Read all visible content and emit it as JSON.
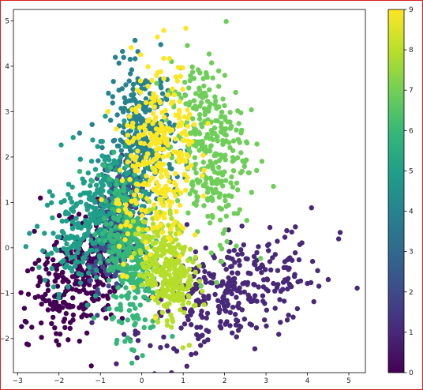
{
  "chart_data": {
    "type": "scatter",
    "title": "",
    "xlabel": "",
    "ylabel": "",
    "xlim": [
      -3.1,
      5.4
    ],
    "ylim": [
      -2.75,
      5.25
    ],
    "x_ticks": [
      -3,
      -2,
      -1,
      0,
      1,
      2,
      3,
      4,
      5
    ],
    "y_ticks": [
      -2,
      -1,
      0,
      1,
      2,
      3,
      4,
      5
    ],
    "grid": false,
    "colormap": "viridis",
    "colorbar": {
      "min": 0,
      "max": 9,
      "ticks": [
        0,
        1,
        2,
        3,
        4,
        5,
        6,
        7,
        8,
        9
      ]
    },
    "clusters": [
      {
        "label": 0,
        "center": [
          -1.5,
          -0.6
        ],
        "spread": [
          0.5,
          0.75
        ],
        "rotation": -0.6,
        "color": "#440154"
      },
      {
        "label": 1,
        "center": [
          2.2,
          -1.0
        ],
        "spread": [
          1.2,
          0.55
        ],
        "rotation": 0.35,
        "color": "#482878"
      },
      {
        "label": 2,
        "center": [
          -0.6,
          0.6
        ],
        "spread": [
          0.25,
          0.75
        ],
        "rotation": -0.2,
        "color": "#3e4a89"
      },
      {
        "label": 4,
        "center": [
          0.0,
          2.4
        ],
        "spread": [
          0.4,
          0.8
        ],
        "rotation": 0.0,
        "color": "#26828e"
      },
      {
        "label": 5,
        "center": [
          -1.2,
          0.7
        ],
        "spread": [
          0.45,
          0.85
        ],
        "rotation": -0.45,
        "color": "#1f9e89"
      },
      {
        "label": 6,
        "center": [
          -0.3,
          -0.1
        ],
        "spread": [
          0.3,
          0.9
        ],
        "rotation": 0.1,
        "color": "#35b779"
      },
      {
        "label": 7,
        "center": [
          1.6,
          2.2
        ],
        "spread": [
          0.45,
          1.0
        ],
        "rotation": 0.1,
        "color": "#6ece58"
      },
      {
        "label": 8,
        "center": [
          0.6,
          -0.4
        ],
        "spread": [
          0.3,
          0.6
        ],
        "rotation": 0.2,
        "color": "#b5de2b"
      },
      {
        "label": 9,
        "center": [
          0.4,
          1.9
        ],
        "spread": [
          0.45,
          1.1
        ],
        "rotation": -0.1,
        "color": "#fde725"
      }
    ]
  }
}
